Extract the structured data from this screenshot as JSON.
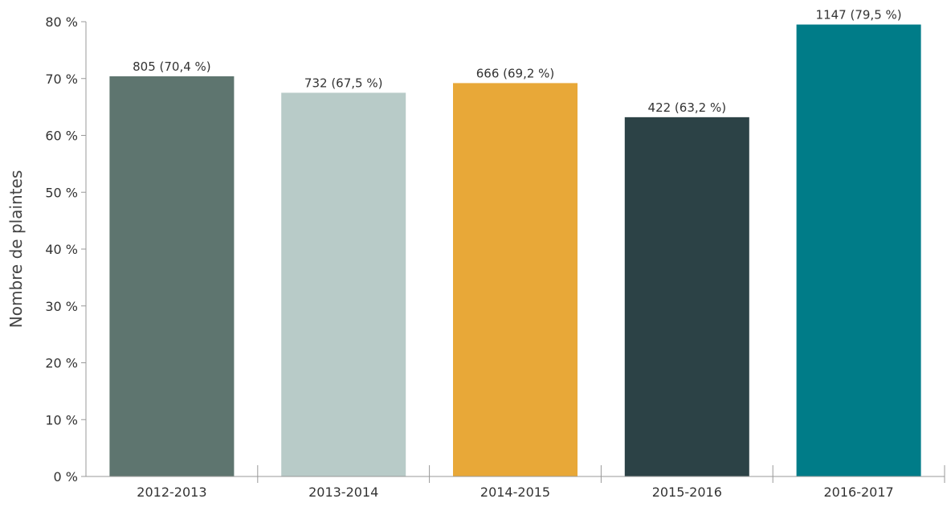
{
  "chart_data": {
    "type": "bar",
    "categories": [
      "2012-2013",
      "2013-2014",
      "2014-2015",
      "2015-2016",
      "2016-2017"
    ],
    "values": [
      70.4,
      67.5,
      69.2,
      63.2,
      79.5
    ],
    "data_labels": [
      "805 (70,4 %)",
      "732 (67,5 %)",
      "666 (69,2 %)",
      "422 (63,2 %)",
      "1147 (79,5 %)"
    ],
    "colors": [
      "#5e756f",
      "#b8cbc8",
      "#e8a838",
      "#2c4246",
      "#007c88"
    ],
    "ylabel": "Nombre de plaintes",
    "xlabel": "",
    "ylim": [
      0,
      80
    ],
    "yticks": [
      "0 %",
      "10 %",
      "20 %",
      "30 %",
      "40 %",
      "50 %",
      "60 %",
      "70 %",
      "80 %"
    ],
    "grid": false,
    "legend": "none"
  }
}
